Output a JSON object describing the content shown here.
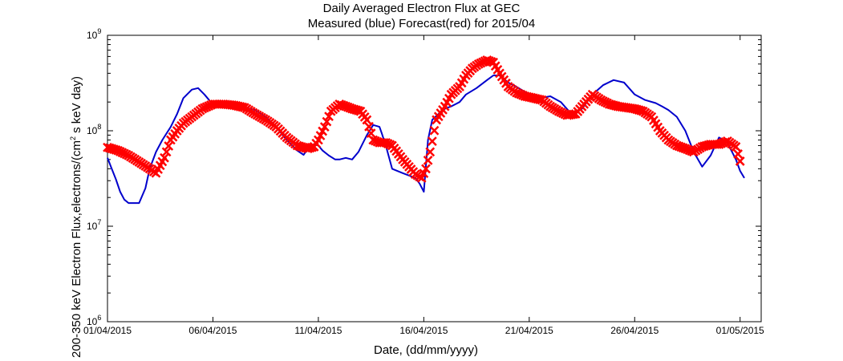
{
  "chart_data": {
    "type": "line",
    "title": "Daily Averaged Electron Flux at GEC",
    "subtitle": "Measured (blue) Forecast(red) for 2015/04",
    "xlabel": "Date, (dd/mm/yyyy)",
    "ylabel_prefix": "200-350 keV Electron Flux,electrons/(cm",
    "ylabel_sup": "2",
    "ylabel_suffix": " s keV day)",
    "x_ticks": [
      "01/04/2015",
      "06/04/2015",
      "11/04/2015",
      "16/04/2015",
      "21/04/2015",
      "26/04/2015",
      "01/05/2015"
    ],
    "x_tick_days": [
      0,
      5,
      10,
      15,
      20,
      25,
      30
    ],
    "xlim": [
      "01/04/2015",
      "02/05/2015"
    ],
    "y_scale": "log",
    "ylim": [
      1000000,
      1000000000
    ],
    "y_ticks": [
      {
        "base": "10",
        "exp": "6",
        "value": 1000000
      },
      {
        "base": "10",
        "exp": "7",
        "value": 10000000
      },
      {
        "base": "10",
        "exp": "8",
        "value": 100000000
      },
      {
        "base": "10",
        "exp": "9",
        "value": 1000000000
      }
    ],
    "x_unit": "days since 01/04/2015",
    "series": [
      {
        "name": "Measured",
        "color": "#0000cc",
        "style": "line",
        "x": [
          0,
          0.2,
          0.4,
          0.6,
          0.8,
          1.0,
          1.2,
          1.5,
          1.8,
          2.0,
          2.3,
          2.6,
          3.0,
          3.3,
          3.6,
          4.0,
          4.3,
          4.6,
          4.9,
          5.2,
          5.5,
          5.8,
          6.1,
          6.5,
          7.0,
          7.5,
          8.0,
          8.5,
          9.0,
          9.3,
          9.5,
          9.8,
          10.0,
          10.2,
          10.5,
          10.8,
          11.0,
          11.3,
          11.6,
          11.9,
          12.3,
          12.6,
          12.9,
          13.0,
          13.2,
          13.5,
          14.0,
          14.3,
          14.6,
          14.8,
          15.0,
          15.2,
          15.4,
          15.7,
          16.0,
          16.3,
          16.7,
          17.0,
          17.5,
          18.0,
          18.3,
          18.6,
          19.0,
          19.5,
          20.0,
          20.5,
          21.0,
          21.5,
          22.0,
          22.5,
          23.0,
          23.5,
          24.0,
          24.5,
          25.0,
          25.5,
          26.0,
          26.3,
          26.6,
          27.0,
          27.4,
          27.8,
          28.2,
          28.6,
          29.0,
          29.4,
          29.8,
          30.0
        ],
        "y": [
          52000000,
          40000000,
          31000000,
          23000000,
          19000000,
          17500000,
          17500000,
          17500000,
          25000000,
          40000000,
          60000000,
          80000000,
          110000000,
          150000000,
          220000000,
          270000000,
          280000000,
          240000000,
          200000000,
          195000000,
          190000000,
          185000000,
          180000000,
          175000000,
          165000000,
          140000000,
          110000000,
          80000000,
          62000000,
          56000000,
          65000000,
          72000000,
          70000000,
          62000000,
          55000000,
          50000000,
          50000000,
          52000000,
          50000000,
          60000000,
          90000000,
          115000000,
          110000000,
          95000000,
          70000000,
          40000000,
          36000000,
          34000000,
          32000000,
          28000000,
          23000000,
          80000000,
          130000000,
          150000000,
          170000000,
          180000000,
          200000000,
          240000000,
          280000000,
          340000000,
          380000000,
          380000000,
          320000000,
          280000000,
          240000000,
          220000000,
          230000000,
          200000000,
          150000000,
          170000000,
          240000000,
          300000000,
          340000000,
          320000000,
          240000000,
          210000000,
          195000000,
          180000000,
          165000000,
          140000000,
          100000000,
          60000000,
          42000000,
          55000000,
          85000000,
          75000000,
          50000000,
          38000000
        ],
        "tail_x": [
          30.0,
          30.2
        ],
        "tail_y": [
          38000000,
          32000000
        ]
      },
      {
        "name": "Forecast",
        "color": "#ff0000",
        "style": "markers",
        "x": [
          0,
          0.5,
          1.0,
          1.5,
          2.0,
          2.3,
          2.7,
          3.0,
          3.3,
          3.6,
          4.0,
          4.5,
          5.0,
          5.5,
          6.0,
          6.5,
          7.0,
          7.5,
          8.0,
          8.5,
          9.0,
          9.5,
          9.8,
          10.0,
          10.3,
          10.6,
          11.0,
          11.3,
          11.6,
          12.0,
          12.3,
          12.6,
          12.9,
          13.2,
          13.5,
          14.0,
          14.3,
          14.6,
          14.9,
          15.1,
          15.3,
          15.6,
          16.0,
          16.3,
          16.7,
          17.0,
          17.3,
          17.6,
          18.0,
          18.3,
          18.6,
          19.0,
          19.4,
          19.8,
          20.2,
          20.6,
          21.0,
          21.4,
          21.8,
          22.2,
          22.6,
          23.0,
          23.4,
          23.8,
          24.2,
          24.6,
          25.0,
          25.4,
          25.8,
          26.2,
          26.6,
          27.0,
          27.4,
          27.8,
          28.2,
          28.6,
          29.0,
          29.4,
          29.8,
          30.0
        ],
        "y": [
          67000000,
          62000000,
          55000000,
          47000000,
          40000000,
          36000000,
          52000000,
          80000000,
          100000000,
          120000000,
          140000000,
          170000000,
          190000000,
          190000000,
          185000000,
          175000000,
          150000000,
          130000000,
          110000000,
          85000000,
          70000000,
          65000000,
          68000000,
          80000000,
          110000000,
          160000000,
          190000000,
          180000000,
          170000000,
          160000000,
          130000000,
          80000000,
          75000000,
          75000000,
          70000000,
          50000000,
          42000000,
          35000000,
          32000000,
          40000000,
          60000000,
          130000000,
          180000000,
          240000000,
          290000000,
          380000000,
          450000000,
          500000000,
          550000000,
          520000000,
          400000000,
          290000000,
          250000000,
          230000000,
          220000000,
          210000000,
          180000000,
          160000000,
          145000000,
          150000000,
          190000000,
          240000000,
          210000000,
          190000000,
          180000000,
          175000000,
          170000000,
          160000000,
          140000000,
          100000000,
          80000000,
          70000000,
          65000000,
          60000000,
          68000000,
          72000000,
          72000000,
          78000000,
          68000000,
          48000000
        ]
      }
    ]
  }
}
